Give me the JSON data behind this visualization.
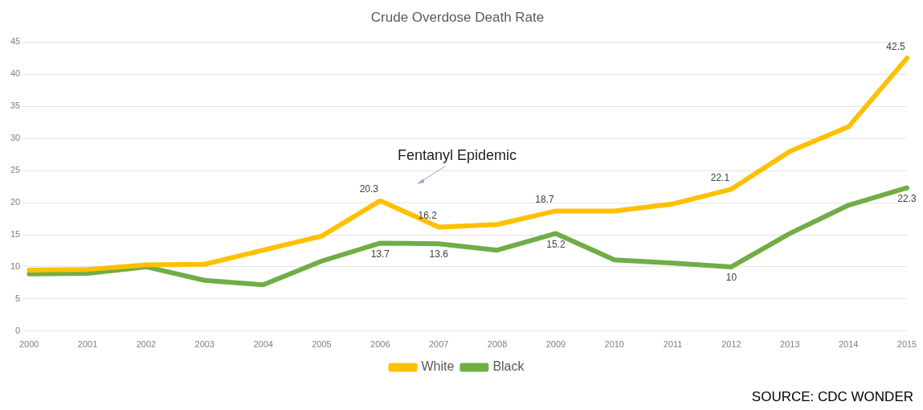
{
  "chart_data": {
    "type": "line",
    "title": "Crude Overdose Death Rate",
    "categories": [
      "2000",
      "2001",
      "2002",
      "2003",
      "2004",
      "2005",
      "2006",
      "2007",
      "2008",
      "2009",
      "2010",
      "2011",
      "2012",
      "2013",
      "2014",
      "2015"
    ],
    "series": [
      {
        "name": "White",
        "color": "#ffc000",
        "values": [
          9.5,
          9.6,
          10.3,
          10.4,
          12.6,
          14.8,
          20.3,
          16.2,
          16.6,
          18.7,
          18.7,
          19.8,
          22.1,
          28,
          31.8,
          42.5
        ],
        "value_labels": [
          null,
          null,
          null,
          null,
          null,
          null,
          "20.3",
          "16.2",
          null,
          "18.7",
          null,
          null,
          "22.1",
          null,
          null,
          "42.5"
        ]
      },
      {
        "name": "Black",
        "color": "#70ad47",
        "values": [
          8.9,
          9.0,
          10.0,
          7.9,
          7.2,
          10.9,
          13.7,
          13.6,
          12.6,
          15.2,
          11.1,
          10.6,
          10,
          15.2,
          19.6,
          22.3
        ],
        "value_labels": [
          null,
          null,
          null,
          null,
          null,
          null,
          "13.7",
          "13.6",
          null,
          "15.2",
          null,
          null,
          "10",
          null,
          null,
          "22.3"
        ]
      }
    ],
    "ylim": [
      0,
      45
    ],
    "yticks": [
      0,
      5,
      10,
      15,
      20,
      25,
      30,
      35,
      40,
      45
    ],
    "grid": "y",
    "legend": "bottom",
    "marker": "none",
    "line_style": "solid",
    "annotations": [
      "Fentanyl Epidemic",
      "SOURCE: CDC WONDER"
    ]
  }
}
